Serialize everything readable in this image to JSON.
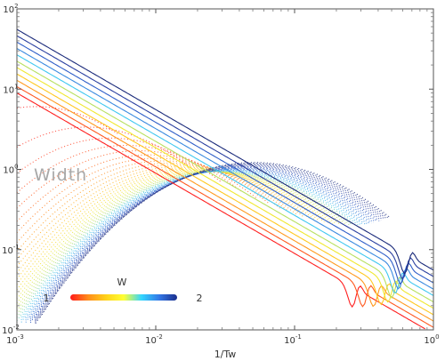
{
  "chart_data": {
    "type": "line",
    "title": "",
    "xlabel": "1/Tw",
    "ylabel": "",
    "xscale": "log",
    "yscale": "log",
    "xlim": [
      0.001,
      1
    ],
    "ylim": [
      0.01,
      100
    ],
    "grid": false,
    "x_ticks": [
      {
        "value": 0.001,
        "base": "10",
        "exp": "-3"
      },
      {
        "value": 0.01,
        "base": "10",
        "exp": "-2"
      },
      {
        "value": 0.1,
        "base": "10",
        "exp": "-1"
      },
      {
        "value": 1,
        "base": "10",
        "exp": "0"
      }
    ],
    "y_ticks": [
      {
        "value": 0.01,
        "base": "10",
        "exp": "-2"
      },
      {
        "value": 0.1,
        "base": "10",
        "exp": "-1"
      },
      {
        "value": 1,
        "base": "10",
        "exp": "0"
      },
      {
        "value": 10,
        "base": "10",
        "exp": "1"
      },
      {
        "value": 100,
        "base": "10",
        "exp": "2"
      }
    ],
    "annotation": "Width",
    "colorbar": {
      "label": "W",
      "min_label": "1",
      "max_label": "2",
      "colors": [
        "#ff1a1a",
        "#ff8c1a",
        "#ffd21a",
        "#ffff33",
        "#33d6ff",
        "#3377e6",
        "#1a2e8c"
      ]
    },
    "series": [
      {
        "W": 1.0,
        "color": "#ff2020",
        "bump_x": 0.26,
        "amp": 8.0,
        "x": [
          0.001,
          0.01,
          0.1,
          0.26,
          1
        ],
        "y": [
          9.0,
          0.9,
          0.09,
          0.04,
          0.009
        ]
      },
      {
        "W": 1.1,
        "color": "#ff5a20",
        "bump_x": 0.31,
        "amp": 9.6,
        "x": [
          0.001,
          0.01,
          0.1,
          1
        ],
        "y": [
          10.8,
          1.08,
          0.108,
          0.0108
        ]
      },
      {
        "W": 1.2,
        "color": "#ff9a20",
        "bump_x": 0.37,
        "amp": 11.5,
        "x": [
          0.001,
          0.01,
          0.1,
          1
        ],
        "y": [
          12.9,
          1.29,
          0.129,
          0.0129
        ]
      },
      {
        "W": 1.3,
        "color": "#ffc820",
        "bump_x": 0.42,
        "amp": 13.8,
        "x": [
          0.001,
          0.01,
          0.1,
          1
        ],
        "y": [
          15.5,
          1.55,
          0.155,
          0.0155
        ]
      },
      {
        "W": 1.4,
        "color": "#f0e830",
        "bump_x": 0.47,
        "amp": 16.6,
        "x": [
          0.001,
          0.01,
          0.1,
          1
        ],
        "y": [
          18.6,
          1.86,
          0.186,
          0.0186
        ]
      },
      {
        "W": 1.5,
        "color": "#b8e060",
        "bump_x": 0.5,
        "amp": 19.9,
        "x": [
          0.001,
          0.01,
          0.1,
          1
        ],
        "y": [
          22.3,
          2.23,
          0.223,
          0.0223
        ]
      },
      {
        "W": 1.6,
        "color": "#40c8f0",
        "bump_x": 0.53,
        "amp": 23.9,
        "x": [
          0.001,
          0.01,
          0.1,
          1
        ],
        "y": [
          26.8,
          2.68,
          0.268,
          0.0268
        ]
      },
      {
        "W": 1.7,
        "color": "#3a8ae0",
        "bump_x": 0.56,
        "amp": 28.7,
        "x": [
          0.001,
          0.01,
          0.1,
          1
        ],
        "y": [
          32.2,
          3.22,
          0.322,
          0.0322
        ]
      },
      {
        "W": 1.8,
        "color": "#2f5ec8",
        "bump_x": 0.58,
        "amp": 34.4,
        "x": [
          0.001,
          0.01,
          0.1,
          1
        ],
        "y": [
          38.6,
          3.86,
          0.386,
          0.0386
        ]
      },
      {
        "W": 1.9,
        "color": "#2a3fa0",
        "bump_x": 0.6,
        "amp": 41.3,
        "x": [
          0.001,
          0.01,
          0.1,
          1
        ],
        "y": [
          46.3,
          4.63,
          0.463,
          0.0463
        ]
      },
      {
        "W": 2.0,
        "color": "#1a2a7a",
        "bump_x": 0.62,
        "amp": 49.6,
        "x": [
          0.001,
          0.01,
          0.1,
          1
        ],
        "y": [
          55.6,
          5.56,
          0.556,
          0.0556
        ]
      }
    ]
  }
}
